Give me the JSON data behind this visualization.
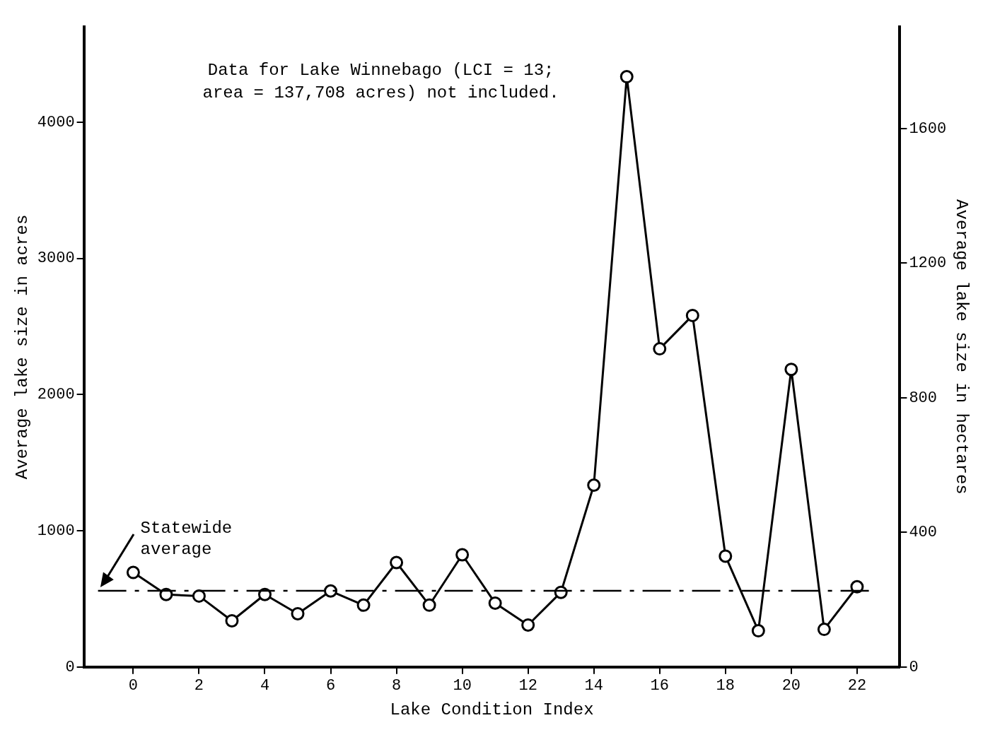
{
  "chart_data": {
    "type": "line",
    "xlabel": "Lake Condition Index",
    "ylabel": "Average lake size in acres",
    "y2label": "Average lake size in hectares",
    "x": [
      0,
      1,
      2,
      3,
      4,
      5,
      6,
      7,
      8,
      9,
      10,
      11,
      12,
      13,
      14,
      15,
      16,
      17,
      18,
      19,
      20,
      21,
      22
    ],
    "series": [
      {
        "color": "#000000",
        "values": [
          694,
          532,
          521,
          339,
          532,
          391,
          558,
          454,
          767,
          454,
          824,
          469,
          308,
          548,
          1335,
          4334,
          2336,
          2581,
          814,
          266,
          2185,
          276,
          589
        ]
      }
    ],
    "xlim": [
      -1.5,
      23.3
    ],
    "xticks": [
      0,
      2,
      4,
      6,
      8,
      10,
      12,
      14,
      16,
      18,
      20,
      22
    ],
    "ylim": [
      0,
      4700
    ],
    "yticks": [
      0,
      1000,
      2000,
      3000,
      4000
    ],
    "y2lim": [
      0,
      1902
    ],
    "y2ticks": [
      0,
      400,
      800,
      1200,
      1600
    ],
    "ref_lines": [
      {
        "axis": "y",
        "value": 560,
        "label": "Statewide average",
        "line_style": "dashed",
        "color": "#000000"
      }
    ],
    "annotations": [
      "Data for Lake Winnebago (LCI = 13; area = 137,708 acres) not included."
    ],
    "marker": "circle",
    "line_style": "solid",
    "grid": false,
    "legend": false
  }
}
